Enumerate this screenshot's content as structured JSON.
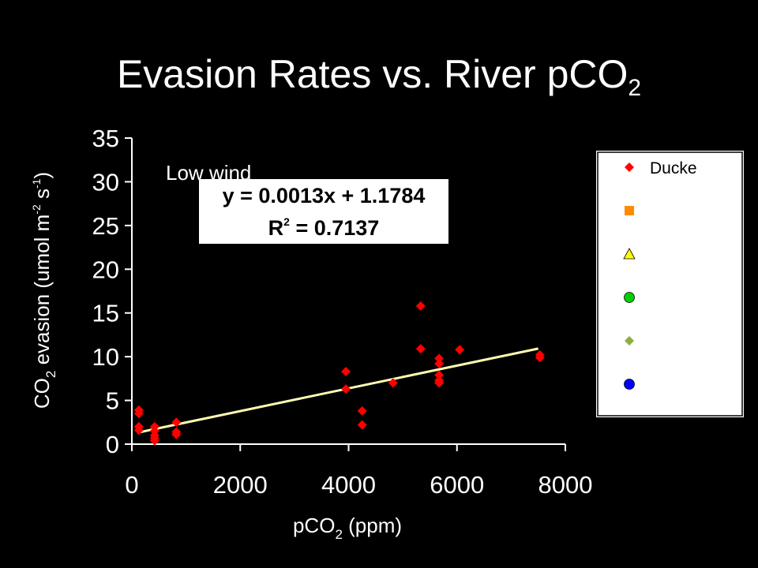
{
  "slide": {
    "title_main": "Evasion Rates vs. River pCO",
    "title_sub": "2"
  },
  "chart_data": {
    "type": "scatter",
    "xlabel": {
      "pre": "pCO",
      "sub": "2",
      "post": " (ppm)"
    },
    "ylabel": {
      "a": "CO",
      "sub": "2",
      "b": " evasion  (umol m",
      "sup1": "-2",
      "c": " s",
      "sup2": "-1",
      "d": ")"
    },
    "xlim": [
      0,
      8000
    ],
    "ylim": [
      0,
      35
    ],
    "xticks": [
      0,
      2000,
      4000,
      6000,
      8000
    ],
    "yticks": [
      0,
      5,
      10,
      15,
      20,
      25,
      30,
      35
    ],
    "annotation": "Low wind",
    "trendline": {
      "equation": "y = 0.0013x + 1.1784",
      "r2_label": "R",
      "r2_sup": "2",
      "r2_value": " = 0.7137",
      "slope": 0.0013,
      "intercept": 1.1784,
      "x_range": [
        100,
        7500
      ],
      "color": "#fffbb0"
    },
    "series": [
      {
        "name": "Ducke",
        "marker": "diamond",
        "color": "#ff0000",
        "points": [
          [
            130,
            3.9
          ],
          [
            130,
            3.5
          ],
          [
            130,
            2.0
          ],
          [
            130,
            1.6
          ],
          [
            420,
            2.0
          ],
          [
            420,
            1.5
          ],
          [
            420,
            1.0
          ],
          [
            420,
            0.7
          ],
          [
            420,
            0.4
          ],
          [
            820,
            2.5
          ],
          [
            820,
            1.4
          ],
          [
            820,
            1.1
          ],
          [
            3950,
            8.3
          ],
          [
            3950,
            6.3
          ],
          [
            4250,
            3.8
          ],
          [
            4250,
            2.2
          ],
          [
            4820,
            7.0
          ],
          [
            5330,
            15.8
          ],
          [
            5330,
            10.9
          ],
          [
            5670,
            9.8
          ],
          [
            5670,
            9.2
          ],
          [
            5670,
            7.9
          ],
          [
            5670,
            7.3
          ],
          [
            5670,
            7.0
          ],
          [
            6050,
            10.8
          ],
          [
            7530,
            10.2
          ],
          [
            7530,
            9.9
          ]
        ]
      },
      {
        "marker": "square",
        "color": "#ff8c00",
        "points": []
      },
      {
        "marker": "triangle",
        "color": "#ffff00",
        "points": []
      },
      {
        "marker": "circle",
        "color": "#00d000",
        "points": []
      },
      {
        "marker": "diamond",
        "color": "#8bb040",
        "points": []
      },
      {
        "marker": "circle",
        "color": "#0000ff",
        "points": []
      }
    ],
    "legend_placement": "right"
  }
}
